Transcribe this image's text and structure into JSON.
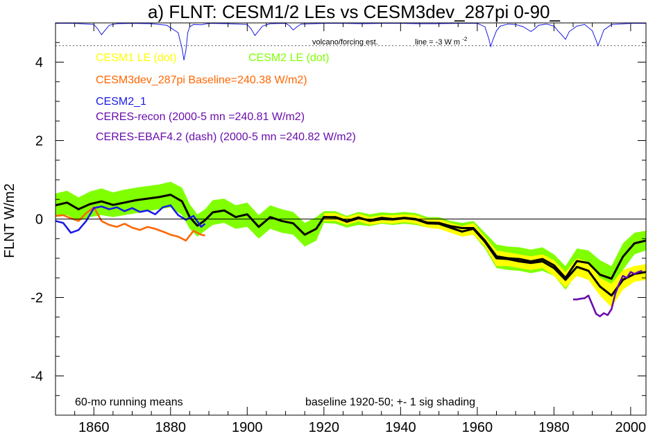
{
  "chart_data": {
    "type": "line",
    "title": "a) FLNT: CESM1/2 LEs vs CESM3dev_287pi 0-90_",
    "ylabel": "FLNT W/m2",
    "xlabel": "",
    "xlim": [
      1850,
      2004
    ],
    "ylim": [
      -5,
      5
    ],
    "grid": false,
    "x_ticks": [
      1860,
      1880,
      1900,
      1920,
      1940,
      1960,
      1980,
      2000
    ],
    "y_ticks": [
      -4,
      -2,
      0,
      2,
      4
    ],
    "legend": [
      {
        "label": "CESM1 LE (dot)",
        "color": "#ffff00"
      },
      {
        "label": "CESM2 LE (dot)",
        "color": "#80ff00"
      },
      {
        "label": "CESM3dev_287pi Baseline=240.38 W/m2)",
        "color": "#ff6600"
      },
      {
        "label": "CESM2_1",
        "color": "#1a1ae6"
      },
      {
        "label": "CERES-recon (2000-5 mn =240.81 W/m2)",
        "color": "#6a0dad"
      },
      {
        "label": "CERES-EBAF4.2 (dash) (2000-5 mn =240.82 W/m2)",
        "color": "#6a0dad"
      }
    ],
    "annotations": {
      "volcano": "volcano/forcing est.",
      "line_label": "line = -3 W m",
      "line_label_sup": "-2",
      "bottom_left": "60-mo running means",
      "bottom_right": "baseline 1920-50; +- 1 sig shading"
    },
    "volcano_series": {
      "color": "#1a1ae6",
      "reference_line_value": 4.42,
      "x": [
        1850,
        1855,
        1860,
        1861,
        1862,
        1863,
        1864,
        1866,
        1870,
        1875,
        1879,
        1882,
        1883,
        1883.5,
        1884,
        1884.5,
        1885,
        1886,
        1888,
        1890,
        1895,
        1900,
        1901,
        1902,
        1903,
        1904,
        1906,
        1910,
        1911,
        1912,
        1913,
        1914,
        1920,
        1925,
        1930,
        1935,
        1940,
        1945,
        1950,
        1955,
        1960,
        1962,
        1963,
        1963.5,
        1964,
        1965,
        1966,
        1968,
        1970,
        1972,
        1974,
        1975,
        1976,
        1978,
        1980,
        1981,
        1982,
        1983,
        1984,
        1986,
        1988,
        1990,
        1991,
        1991.5,
        1992,
        1993,
        1995,
        2000,
        2004
      ],
      "y": [
        4.99,
        4.99,
        4.96,
        4.85,
        4.7,
        4.82,
        4.94,
        4.98,
        4.99,
        4.98,
        4.94,
        4.75,
        4.35,
        4.05,
        4.3,
        4.75,
        4.9,
        4.96,
        4.95,
        4.99,
        4.98,
        4.96,
        4.85,
        4.68,
        4.8,
        4.92,
        4.98,
        4.99,
        4.93,
        4.82,
        4.9,
        4.97,
        4.99,
        4.99,
        4.98,
        4.99,
        4.99,
        4.98,
        4.98,
        4.99,
        4.99,
        4.9,
        4.6,
        4.4,
        4.55,
        4.8,
        4.92,
        4.97,
        4.96,
        4.9,
        4.78,
        4.85,
        4.94,
        4.97,
        4.92,
        4.8,
        4.7,
        4.58,
        4.78,
        4.92,
        4.96,
        4.8,
        4.55,
        4.42,
        4.55,
        4.82,
        4.96,
        4.99,
        4.99
      ]
    },
    "series": [
      {
        "name": "CESM2 LE (dot)",
        "color": "#80ff00",
        "x": [
          1850,
          1853,
          1856,
          1859,
          1862,
          1865,
          1868,
          1871,
          1874,
          1877,
          1880,
          1883,
          1885,
          1887,
          1889,
          1891,
          1894,
          1897,
          1900,
          1903,
          1906,
          1909,
          1912,
          1915,
          1918,
          1920,
          1923,
          1926,
          1929,
          1932,
          1935,
          1938,
          1941,
          1944,
          1947,
          1950,
          1953,
          1956,
          1959,
          1962,
          1965,
          1968,
          1971,
          1974,
          1977,
          1980,
          1983,
          1986,
          1989,
          1992,
          1995,
          1998,
          2001,
          2004
        ],
        "upper": [
          0.65,
          0.72,
          0.55,
          0.7,
          0.78,
          0.68,
          0.75,
          0.8,
          0.84,
          0.88,
          0.95,
          0.8,
          0.38,
          0.12,
          0.25,
          0.48,
          0.52,
          0.35,
          0.42,
          0.1,
          0.35,
          0.25,
          0.18,
          -0.1,
          0.05,
          0.2,
          0.2,
          0.08,
          0.18,
          0.12,
          0.17,
          0.15,
          0.18,
          0.15,
          0.05,
          0.05,
          -0.05,
          -0.1,
          -0.05,
          -0.35,
          -0.65,
          -0.7,
          -0.72,
          -0.78,
          -0.72,
          -0.9,
          -1.2,
          -0.75,
          -0.8,
          -1.05,
          -1.2,
          -0.62,
          -0.35,
          -0.3
        ],
        "lower": [
          0.05,
          0.1,
          -0.05,
          0.05,
          0.1,
          0.05,
          0.1,
          0.15,
          0.2,
          0.25,
          0.3,
          0.1,
          -0.25,
          -0.45,
          -0.3,
          -0.15,
          -0.1,
          -0.25,
          -0.2,
          -0.5,
          -0.25,
          -0.35,
          -0.4,
          -0.7,
          -0.55,
          -0.1,
          -0.12,
          -0.22,
          -0.15,
          -0.18,
          -0.12,
          -0.15,
          -0.12,
          -0.15,
          -0.22,
          -0.25,
          -0.3,
          -0.35,
          -0.4,
          -0.75,
          -1.25,
          -1.3,
          -1.32,
          -1.38,
          -1.32,
          -1.45,
          -1.8,
          -1.4,
          -1.45,
          -1.8,
          -1.85,
          -1.3,
          -0.9,
          -0.8
        ]
      },
      {
        "name": "CESM1 LE (dot)",
        "color": "#ffff00",
        "x": [
          1920,
          1923,
          1926,
          1929,
          1932,
          1935,
          1938,
          1941,
          1944,
          1947,
          1950,
          1953,
          1956,
          1959,
          1962,
          1965,
          1968,
          1971,
          1974,
          1977,
          1980,
          1983,
          1986,
          1989,
          1992,
          1995,
          1998,
          2001,
          2004
        ],
        "upper": [
          0.15,
          0.15,
          0.05,
          0.14,
          0.05,
          0.1,
          0.1,
          0.12,
          0.1,
          0.0,
          0.0,
          -0.1,
          -0.18,
          -0.1,
          -0.45,
          -0.8,
          -0.85,
          -0.9,
          -0.95,
          -0.9,
          -1.05,
          -1.35,
          -1.0,
          -1.1,
          -1.5,
          -1.65,
          -1.3,
          -1.2,
          -1.15
        ],
        "lower": [
          -0.05,
          -0.05,
          -0.15,
          -0.06,
          -0.15,
          -0.1,
          -0.12,
          -0.08,
          -0.12,
          -0.22,
          -0.25,
          -0.35,
          -0.45,
          -0.4,
          -0.7,
          -1.2,
          -1.2,
          -1.25,
          -1.3,
          -1.25,
          -1.45,
          -1.75,
          -1.45,
          -1.55,
          -1.95,
          -2.25,
          -1.8,
          -1.6,
          -1.55
        ]
      },
      {
        "name": "CESM1 LE mean",
        "color": "#000000",
        "x": [
          1920,
          1923,
          1926,
          1929,
          1932,
          1935,
          1938,
          1941,
          1944,
          1947,
          1950,
          1953,
          1956,
          1959,
          1962,
          1965,
          1968,
          1971,
          1974,
          1977,
          1980,
          1983,
          1986,
          1989,
          1992,
          1995,
          1998,
          2001,
          2004
        ],
        "y": [
          0.05,
          0.05,
          -0.05,
          0.04,
          -0.05,
          0.0,
          -0.01,
          0.02,
          -0.01,
          -0.11,
          -0.12,
          -0.22,
          -0.32,
          -0.25,
          -0.58,
          -1.0,
          -1.02,
          -1.08,
          -1.12,
          -1.08,
          -1.25,
          -1.55,
          -1.22,
          -1.32,
          -1.72,
          -1.95,
          -1.55,
          -1.4,
          -1.35
        ]
      },
      {
        "name": "CESM2 LE mean",
        "color": "#000000",
        "x": [
          1850,
          1853,
          1856,
          1859,
          1862,
          1865,
          1868,
          1871,
          1874,
          1877,
          1880,
          1883,
          1885,
          1887,
          1889,
          1891,
          1894,
          1897,
          1900,
          1903,
          1906,
          1909,
          1912,
          1915,
          1918,
          1920,
          1923,
          1926,
          1929,
          1932,
          1935,
          1938,
          1941,
          1944,
          1947,
          1950,
          1953,
          1956,
          1959,
          1962,
          1965,
          1968,
          1971,
          1974,
          1977,
          1980,
          1983,
          1986,
          1989,
          1992,
          1995,
          1998,
          2001,
          2004
        ],
        "y": [
          0.35,
          0.42,
          0.25,
          0.38,
          0.45,
          0.36,
          0.42,
          0.48,
          0.52,
          0.56,
          0.62,
          0.45,
          0.05,
          -0.17,
          -0.03,
          0.17,
          0.22,
          0.05,
          0.12,
          -0.2,
          0.05,
          -0.05,
          -0.11,
          -0.4,
          -0.25,
          0.05,
          0.04,
          -0.07,
          0.02,
          -0.03,
          0.03,
          0.0,
          0.03,
          0.0,
          -0.09,
          -0.1,
          -0.18,
          -0.23,
          -0.23,
          -0.55,
          -0.95,
          -1.0,
          -1.02,
          -1.08,
          -1.02,
          -1.18,
          -1.5,
          -1.07,
          -1.12,
          -1.42,
          -1.52,
          -0.96,
          -0.62,
          -0.55
        ]
      },
      {
        "name": "CESM3dev_287pi",
        "color": "#ff6600",
        "x": [
          1850,
          1852,
          1854,
          1856,
          1858,
          1860,
          1862,
          1864,
          1866,
          1868,
          1870,
          1872,
          1874,
          1876,
          1878,
          1880,
          1882,
          1884,
          1886,
          1888,
          1889
        ],
        "y": [
          0.08,
          0.1,
          0.02,
          -0.05,
          0.15,
          0.3,
          -0.05,
          -0.15,
          -0.2,
          -0.12,
          -0.22,
          -0.28,
          -0.2,
          -0.25,
          -0.32,
          -0.4,
          -0.45,
          -0.55,
          -0.3,
          -0.4,
          -0.42
        ]
      },
      {
        "name": "CESM2_1",
        "color": "#1a1ae6",
        "x": [
          1850,
          1852,
          1854,
          1856,
          1858,
          1860,
          1862,
          1864,
          1866,
          1868,
          1870,
          1872,
          1874,
          1876,
          1878,
          1880,
          1882,
          1884,
          1886,
          1888,
          1889
        ],
        "y": [
          -0.05,
          -0.1,
          -0.35,
          -0.28,
          -0.05,
          0.28,
          0.32,
          0.25,
          0.3,
          0.2,
          0.28,
          0.18,
          0.22,
          0.12,
          0.3,
          0.35,
          0.1,
          -0.02,
          0.08,
          -0.2,
          -0.12
        ]
      },
      {
        "name": "CERES-recon",
        "color": "#6a0dad",
        "x": [
          1985,
          1986,
          1987,
          1988,
          1989,
          1990,
          1991,
          1992,
          1993,
          1994,
          1995,
          1996,
          1997,
          1998,
          1999,
          2000,
          2001,
          2002,
          2003
        ],
        "y": [
          -2.05,
          -2.05,
          -2.03,
          -2.02,
          -1.95,
          -2.18,
          -2.42,
          -2.48,
          -2.4,
          -2.45,
          -2.3,
          -1.9,
          -1.65,
          -1.45,
          -1.5,
          -1.35,
          -1.4,
          -1.35,
          -1.32
        ]
      }
    ]
  }
}
